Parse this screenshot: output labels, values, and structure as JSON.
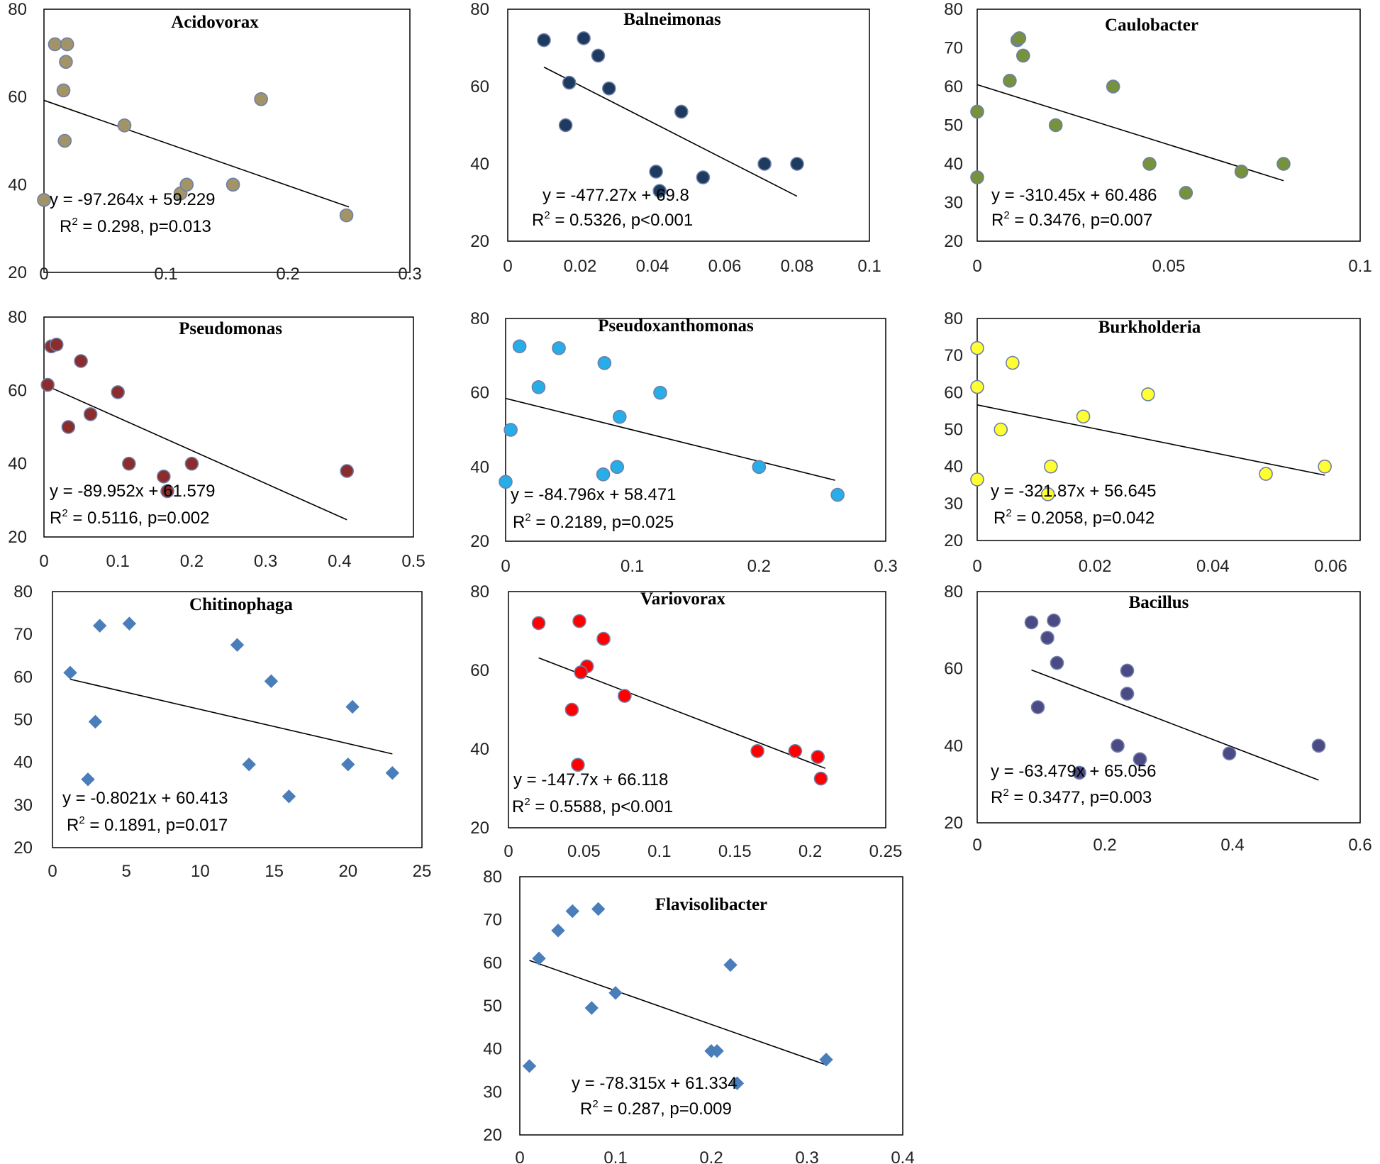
{
  "chart_data": [
    {
      "type": "scatter",
      "title": "Acidovorax",
      "marker": "circle",
      "color": "#a39467",
      "edge": "#6e7fa8",
      "xlim": [
        0,
        0.3
      ],
      "ylim": [
        20,
        80
      ],
      "xticks": [
        "0",
        "0.1",
        "0.2",
        "0.3"
      ],
      "yticks": [
        "20",
        "40",
        "60",
        "80"
      ],
      "points": [
        [
          0.009,
          72
        ],
        [
          0.019,
          72
        ],
        [
          0.018,
          68
        ],
        [
          0.016,
          61.5
        ],
        [
          0.017,
          50
        ],
        [
          0.066,
          53.5
        ],
        [
          0.178,
          59.5
        ],
        [
          0.112,
          38
        ],
        [
          0.117,
          40
        ],
        [
          0.155,
          40
        ],
        [
          0,
          36.5
        ],
        [
          0.248,
          33
        ]
      ],
      "trend": {
        "slope": -97.264,
        "intercept": 59.229,
        "x0": 0,
        "x1": 0.25
      },
      "equation": "y = -97.264x + 59.229",
      "r2_label": "R",
      "r2_sup": "2",
      "r2_text": " = 0.298, p=0.013"
    },
    {
      "type": "scatter",
      "title": "Balneimonas",
      "marker": "circle",
      "color": "#1f3a5f",
      "edge": "#6e7fa8",
      "xlim": [
        0,
        0.1
      ],
      "ylim": [
        20,
        80
      ],
      "xticks": [
        "0",
        "0.02",
        "0.04",
        "0.06",
        "0.08",
        "0.1"
      ],
      "yticks": [
        "20",
        "40",
        "60",
        "80"
      ],
      "points": [
        [
          0.01,
          72
        ],
        [
          0.021,
          72.5
        ],
        [
          0.025,
          68
        ],
        [
          0.017,
          61
        ],
        [
          0.028,
          59.5
        ],
        [
          0.016,
          50
        ],
        [
          0.048,
          53.5
        ],
        [
          0.041,
          38
        ],
        [
          0.054,
          36.5
        ],
        [
          0.042,
          33
        ],
        [
          0.071,
          40
        ],
        [
          0.08,
          40
        ]
      ],
      "trend": {
        "slope": -477.27,
        "intercept": 69.8,
        "x0": 0.01,
        "x1": 0.08
      },
      "equation": "y = -477.27x + 69.8",
      "r2_label": "R",
      "r2_sup": "2",
      "r2_text": " = 0.5326,  p<0.001"
    },
    {
      "type": "scatter",
      "title": "Caulobacter",
      "marker": "circle",
      "color": "#76923c",
      "edge": "#6e7fa8",
      "xlim": [
        0,
        0.1
      ],
      "ylim": [
        20,
        80
      ],
      "xticks": [
        "0",
        "0.05",
        "0.1"
      ],
      "yticks": [
        "20",
        "30",
        "40",
        "50",
        "60",
        "70",
        "80"
      ],
      "points": [
        [
          0.0105,
          72
        ],
        [
          0.011,
          72.5
        ],
        [
          0.012,
          68
        ],
        [
          0.0085,
          61.5
        ],
        [
          0,
          53.5
        ],
        [
          0.0205,
          50
        ],
        [
          0.0355,
          60
        ],
        [
          0.045,
          40
        ],
        [
          0.0545,
          32.5
        ],
        [
          0.069,
          38
        ],
        [
          0.08,
          40
        ],
        [
          0,
          36.5
        ]
      ],
      "trend": {
        "slope": -310.45,
        "intercept": 60.486,
        "x0": 0,
        "x1": 0.08
      },
      "equation": "y = -310.45x + 60.486",
      "r2_label": "R",
      "r2_sup": "2",
      "r2_text": " = 0.3476,  p=0.007"
    },
    {
      "type": "scatter",
      "title": "Pseudomonas",
      "marker": "circle",
      "color": "#8b2d2d",
      "edge": "#6e7fa8",
      "xlim": [
        0,
        0.5
      ],
      "ylim": [
        20,
        80
      ],
      "xticks": [
        "0",
        "0.1",
        "0.2",
        "0.3",
        "0.4",
        "0.5"
      ],
      "yticks": [
        "20",
        "40",
        "60",
        "80"
      ],
      "points": [
        [
          0.01,
          72
        ],
        [
          0.017,
          72.5
        ],
        [
          0.05,
          68
        ],
        [
          0.005,
          61.5
        ],
        [
          0.1,
          59.5
        ],
        [
          0.063,
          53.5
        ],
        [
          0.033,
          50
        ],
        [
          0.115,
          40
        ],
        [
          0.162,
          36.5
        ],
        [
          0.167,
          32.5
        ],
        [
          0.2,
          40
        ],
        [
          0.41,
          38
        ]
      ],
      "trend": {
        "slope": -89.952,
        "intercept": 61.579,
        "x0": 0,
        "x1": 0.41
      },
      "equation": "y = -89.952x + 61.579",
      "r2_label": "R",
      "r2_sup": "2",
      "r2_text": " = 0.5116,  p=0.002"
    },
    {
      "type": "scatter",
      "title": "Pseudoxanthomonas",
      "marker": "circle",
      "color": "#27aee8",
      "edge": "#6e7fa8",
      "xlim": [
        0,
        0.3
      ],
      "ylim": [
        20,
        80
      ],
      "xticks": [
        "0",
        "0.1",
        "0.2",
        "0.3"
      ],
      "yticks": [
        "20",
        "40",
        "60",
        "80"
      ],
      "points": [
        [
          0.011,
          72.5
        ],
        [
          0.042,
          72
        ],
        [
          0.078,
          68
        ],
        [
          0.026,
          61.5
        ],
        [
          0.122,
          60
        ],
        [
          0.004,
          50
        ],
        [
          0.09,
          53.5
        ],
        [
          0.077,
          38
        ],
        [
          0.088,
          40
        ],
        [
          0,
          36
        ],
        [
          0.2,
          40
        ],
        [
          0.262,
          32.5
        ]
      ],
      "trend": {
        "slope": -84.796,
        "intercept": 58.471,
        "x0": 0,
        "x1": 0.26
      },
      "equation": "y = -84.796x + 58.471",
      "r2_label": "R",
      "r2_sup": "2",
      "r2_text": " = 0.2189,  p=0.025"
    },
    {
      "type": "scatter",
      "title": "Burkholderia",
      "marker": "circle",
      "color": "#ffff33",
      "edge": "#6e7fa8",
      "xlim": [
        0,
        0.065
      ],
      "ylim": [
        20,
        80
      ],
      "xticks": [
        "0",
        "0.02",
        "0.04",
        "0.06"
      ],
      "yticks": [
        "20",
        "30",
        "40",
        "50",
        "60",
        "70",
        "80"
      ],
      "points": [
        [
          0,
          72
        ],
        [
          0.006,
          68
        ],
        [
          0,
          61.5
        ],
        [
          0.004,
          50
        ],
        [
          0.018,
          53.5
        ],
        [
          0.029,
          59.5
        ],
        [
          0.0125,
          40
        ],
        [
          0,
          36.5
        ],
        [
          0.012,
          32.5
        ],
        [
          0.049,
          38
        ],
        [
          0.059,
          40
        ]
      ],
      "trend": {
        "slope": -321.87,
        "intercept": 56.645,
        "x0": 0,
        "x1": 0.059
      },
      "equation": "y = -321.87x + 56.645",
      "r2_label": "R",
      "r2_sup": "2",
      "r2_text": " = 0.2058,  p=0.042"
    },
    {
      "type": "scatter",
      "title": "Chitinophaga",
      "marker": "diamond",
      "color": "#4a7ebb",
      "edge": "#4a7ebb",
      "xlim": [
        0,
        25
      ],
      "ylim": [
        20,
        80
      ],
      "xticks": [
        "0",
        "5",
        "10",
        "15",
        "20",
        "25"
      ],
      "yticks": [
        "20",
        "30",
        "40",
        "50",
        "60",
        "70",
        "80"
      ],
      "points": [
        [
          1.2,
          61
        ],
        [
          3.2,
          72
        ],
        [
          5.2,
          72.5
        ],
        [
          12.5,
          67.5
        ],
        [
          14.8,
          59
        ],
        [
          2.9,
          49.5
        ],
        [
          20.3,
          53
        ],
        [
          2.4,
          36
        ],
        [
          13.3,
          39.5
        ],
        [
          20,
          39.5
        ],
        [
          16,
          32
        ],
        [
          23,
          37.5
        ]
      ],
      "trend": {
        "slope": -0.8021,
        "intercept": 60.413,
        "x0": 1.2,
        "x1": 23
      },
      "equation": "y = -0.8021x + 60.413",
      "r2_label": "R",
      "r2_sup": "2",
      "r2_text": " = 0.1891, p=0.017"
    },
    {
      "type": "scatter",
      "title": "Variovorax",
      "marker": "circle",
      "color": "#ff0000",
      "edge": "#6e7fa8",
      "xlim": [
        0,
        0.25
      ],
      "ylim": [
        20,
        80
      ],
      "xticks": [
        "0",
        "0.05",
        "0.1",
        "0.15",
        "0.2",
        "0.25"
      ],
      "yticks": [
        "20",
        "40",
        "60",
        "80"
      ],
      "points": [
        [
          0.02,
          72
        ],
        [
          0.047,
          72.5
        ],
        [
          0.063,
          68
        ],
        [
          0.052,
          61
        ],
        [
          0.048,
          59.5
        ],
        [
          0.077,
          53.5
        ],
        [
          0.042,
          50
        ],
        [
          0.046,
          36
        ],
        [
          0.165,
          39.5
        ],
        [
          0.19,
          39.5
        ],
        [
          0.205,
          38
        ],
        [
          0.207,
          32.5
        ]
      ],
      "trend": {
        "slope": -147.7,
        "intercept": 66.118,
        "x0": 0.02,
        "x1": 0.21
      },
      "equation": "y = -147.7x + 66.118",
      "r2_label": "R",
      "r2_sup": "2",
      "r2_text": " = 0.5588,  p<0.001"
    },
    {
      "type": "scatter",
      "title": "Bacillus",
      "marker": "circle",
      "color": "#4b4a85",
      "edge": "#6e7fa8",
      "xlim": [
        0,
        0.6
      ],
      "ylim": [
        20,
        80
      ],
      "xticks": [
        "0",
        "0.2",
        "0.4",
        "0.6"
      ],
      "yticks": [
        "20",
        "40",
        "60",
        "80"
      ],
      "points": [
        [
          0.085,
          72
        ],
        [
          0.12,
          72.5
        ],
        [
          0.11,
          68
        ],
        [
          0.125,
          61.5
        ],
        [
          0.235,
          59.5
        ],
        [
          0.235,
          53.5
        ],
        [
          0.095,
          50
        ],
        [
          0.22,
          40
        ],
        [
          0.255,
          36.5
        ],
        [
          0.16,
          33
        ],
        [
          0.395,
          38
        ],
        [
          0.535,
          40
        ]
      ],
      "trend": {
        "slope": -63.479,
        "intercept": 65.056,
        "x0": 0.085,
        "x1": 0.535
      },
      "equation": "y = -63.479x + 65.056",
      "r2_label": "R",
      "r2_sup": "2",
      "r2_text": " = 0.3477,  p=0.003"
    },
    {
      "type": "scatter",
      "title": "Flavisolibacter",
      "marker": "diamond",
      "color": "#4a7ebb",
      "edge": "#4a7ebb",
      "xlim": [
        0,
        0.4
      ],
      "ylim": [
        20,
        80
      ],
      "xticks": [
        "0",
        "0.1",
        "0.2",
        "0.3",
        "0.4"
      ],
      "yticks": [
        "20",
        "30",
        "40",
        "50",
        "60",
        "70",
        "80"
      ],
      "points": [
        [
          0.055,
          72
        ],
        [
          0.082,
          72.5
        ],
        [
          0.04,
          67.5
        ],
        [
          0.02,
          61
        ],
        [
          0.22,
          59.5
        ],
        [
          0.1,
          53
        ],
        [
          0.075,
          49.5
        ],
        [
          0.2,
          39.5
        ],
        [
          0.206,
          39.5
        ],
        [
          0.01,
          36
        ],
        [
          0.227,
          32
        ],
        [
          0.32,
          37.5
        ]
      ],
      "trend": {
        "slope": -78.315,
        "intercept": 61.334,
        "x0": 0.01,
        "x1": 0.32
      },
      "equation": "y = -78.315x + 61.334",
      "r2_label": "R",
      "r2_sup": "2",
      "r2_text": " = 0.287,  p=0.009"
    }
  ]
}
